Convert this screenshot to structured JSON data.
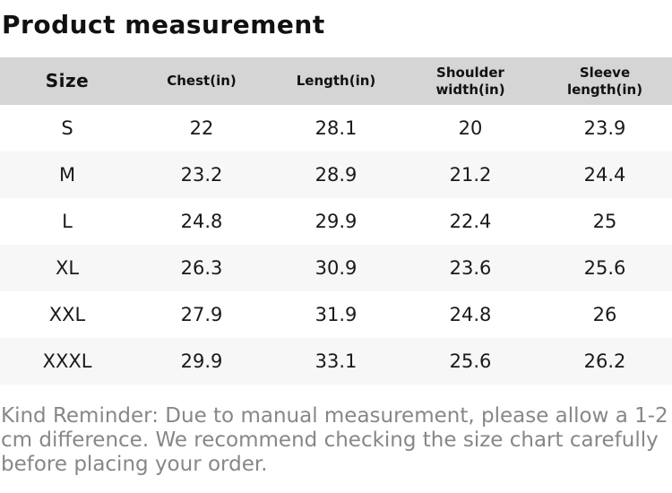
{
  "title": "Product measurement",
  "table": {
    "columns": [
      "Size",
      "Chest(in)",
      "Length(in)",
      "Shoulder width(in)",
      "Sleeve length(in)"
    ],
    "rows": [
      [
        "S",
        "22",
        "28.1",
        "20",
        "23.9"
      ],
      [
        "M",
        "23.2",
        "28.9",
        "21.2",
        "24.4"
      ],
      [
        "L",
        "24.8",
        "29.9",
        "22.4",
        "25"
      ],
      [
        "XL",
        "26.3",
        "30.9",
        "23.6",
        "25.6"
      ],
      [
        "XXL",
        "27.9",
        "31.9",
        "24.8",
        "26"
      ],
      [
        "XXXL",
        "29.9",
        "33.1",
        "25.6",
        "26.2"
      ]
    ]
  },
  "reminder": "Kind Reminder: Due to manual measurement, please allow a 1-2 cm difference. We recommend checking the size chart carefully before placing your order.",
  "colors": {
    "header_background": "#d5d5d5",
    "stripe_background": "#f7f7f7",
    "reminder_text": "#878787",
    "body_text": "#1a1a1a"
  }
}
